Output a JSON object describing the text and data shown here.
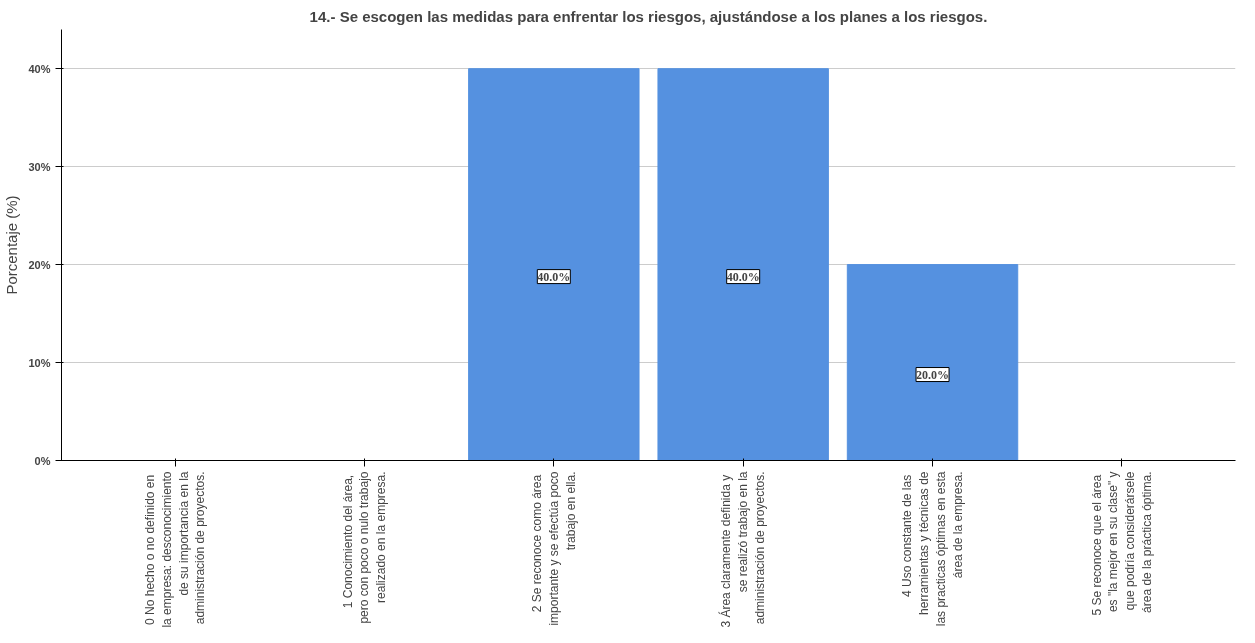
{
  "chart_data": {
    "type": "bar",
    "title": "14.- Se escogen las medidas para enfrentar los riesgos, ajustándose a los planes a los riesgos.",
    "ylabel": "Porcentaje (%)",
    "categories": [
      "0  No hecho o no definido en\nla empresa: desconocimiento\nde su importancia en la\nadministración de proyectos.",
      "1  Conocimiento del área,\npero con poco o nulo trabajo\nrealizado en la empresa.",
      "2  Se reconoce como área\nimportante y se efectúa poco\ntrabajo en ella.",
      "3  Área claramente definida y\nse realizó trabajo en la\nadministración de proyectos.",
      "4  Uso constante de las\nherramientas y técnicas de\nlas practicas óptimas en esta\nárea de la empresa.",
      "5  Se reconoce que el área\nes \"la mejor en su clase\" y\nque podría considerársele\nárea de la práctica óptima."
    ],
    "values": [
      0,
      0,
      40,
      40,
      20,
      0
    ],
    "value_labels": [
      null,
      null,
      "40.0%",
      "40.0%",
      "20.0%",
      null
    ],
    "color": "#5591e0",
    "ylim": [
      0,
      44
    ],
    "yticks": [
      {
        "value": 0,
        "label": "0%"
      },
      {
        "value": 10,
        "label": "10%"
      },
      {
        "value": 20,
        "label": "20%"
      },
      {
        "value": 30,
        "label": "30%"
      },
      {
        "value": 40,
        "label": "40%"
      }
    ],
    "grid": "y"
  }
}
